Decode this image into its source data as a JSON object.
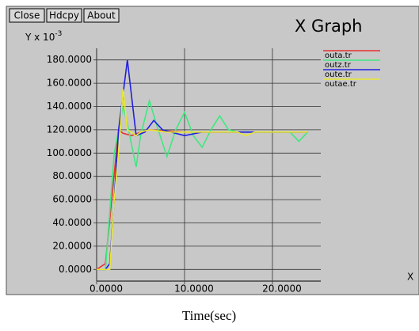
{
  "buttons": [
    "Close",
    "Hdcpy",
    "About"
  ],
  "chart_data": {
    "type": "line",
    "title": "X Graph",
    "y_label": "Y x 10",
    "y_label_exponent": "-3",
    "x_label": "Time(sec)",
    "x_axis_corner_label": "X",
    "xlim": [
      0,
      25.5
    ],
    "ylim": [
      -10,
      190
    ],
    "xticks": [
      {
        "value": 0,
        "label": "0.0000"
      },
      {
        "value": 10,
        "label": "10.0000"
      },
      {
        "value": 20,
        "label": "20.0000"
      }
    ],
    "yticks": [
      {
        "value": 0,
        "label": "0.0000"
      },
      {
        "value": 20,
        "label": "20.0000"
      },
      {
        "value": 40,
        "label": "40.0000"
      },
      {
        "value": 60,
        "label": "60.0000"
      },
      {
        "value": 80,
        "label": "80.0000"
      },
      {
        "value": 100,
        "label": "100.0000"
      },
      {
        "value": 120,
        "label": "120.0000"
      },
      {
        "value": 140,
        "label": "140.0000"
      },
      {
        "value": 160,
        "label": "160.0000"
      },
      {
        "value": 180,
        "label": "180.0000"
      }
    ],
    "grid": true,
    "legend": "right",
    "series": [
      {
        "name": "outa.tr",
        "color": "#e83030",
        "x": [
          0,
          1,
          2.5,
          3,
          4,
          5,
          6,
          10,
          24
        ],
        "values": [
          0,
          5,
          120,
          117,
          115,
          118,
          120,
          118,
          118
        ]
      },
      {
        "name": "outz.tr",
        "color": "#40e880",
        "x": [
          0,
          1,
          2,
          3,
          3.5,
          4.5,
          5,
          6,
          7,
          8,
          9,
          10,
          11,
          12,
          13,
          14,
          15,
          16,
          22,
          23,
          24
        ],
        "values": [
          0,
          0,
          100,
          140,
          125,
          88,
          115,
          145,
          120,
          97,
          120,
          135,
          115,
          105,
          120,
          132,
          120,
          118,
          118,
          110,
          118
        ]
      },
      {
        "name": "oute.tr",
        "color": "#2020e0",
        "x": [
          0,
          1,
          1.5,
          2,
          2.5,
          3.5,
          4.5,
          5.5,
          6.5,
          7.5,
          8.5,
          10,
          12,
          24
        ],
        "values": [
          0,
          0,
          5,
          60,
          120,
          180,
          115,
          118,
          128,
          120,
          118,
          115,
          118,
          118
        ]
      },
      {
        "name": "outae.tr",
        "color": "#e8e830",
        "x": [
          0,
          1.5,
          2,
          2.5,
          3,
          3.5,
          4.5,
          5,
          6,
          8,
          16,
          17,
          18,
          24
        ],
        "values": [
          0,
          0,
          60,
          100,
          155,
          120,
          115,
          118,
          120,
          118,
          118,
          115,
          118,
          118
        ]
      }
    ]
  }
}
